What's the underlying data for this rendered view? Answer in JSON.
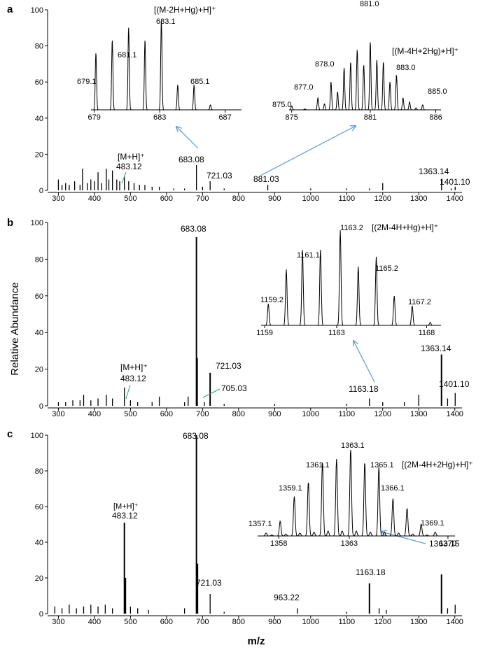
{
  "figure": {
    "ylabel": "Relative Abundance",
    "xlabel": "m/z",
    "arrow_color": "#5b9bd5",
    "green_color": "#2e9d7a"
  },
  "chart_data": [
    {
      "panel": "a",
      "type": "bar",
      "xlim": [
        270,
        1420
      ],
      "ylim": [
        0,
        100
      ],
      "xticks": [
        300,
        400,
        500,
        600,
        700,
        800,
        900,
        1000,
        1100,
        1200,
        1300,
        1400
      ],
      "yticks": [
        0,
        20,
        40,
        60,
        80,
        100
      ],
      "peaks": [
        [
          300,
          6
        ],
        [
          310,
          3
        ],
        [
          320,
          4
        ],
        [
          330,
          3
        ],
        [
          345,
          5
        ],
        [
          360,
          3
        ],
        [
          367,
          12
        ],
        [
          380,
          4
        ],
        [
          390,
          6
        ],
        [
          400,
          5
        ],
        [
          410,
          10
        ],
        [
          420,
          4
        ],
        [
          433,
          12
        ],
        [
          440,
          6
        ],
        [
          450,
          11
        ],
        [
          462,
          6
        ],
        [
          470,
          5
        ],
        [
          483.12,
          8
        ],
        [
          495,
          5
        ],
        [
          510,
          4
        ],
        [
          525,
          3
        ],
        [
          540,
          3
        ],
        [
          560,
          2
        ],
        [
          580,
          2
        ],
        [
          620,
          1
        ],
        [
          650,
          1
        ],
        [
          683.08,
          14
        ],
        [
          700,
          2
        ],
        [
          721.03,
          5
        ],
        [
          760,
          1
        ],
        [
          881.03,
          3
        ],
        [
          1000,
          1
        ],
        [
          1100,
          1
        ],
        [
          1163,
          1
        ],
        [
          1200,
          4
        ],
        [
          1363.14,
          6
        ],
        [
          1390,
          1
        ],
        [
          1401.1,
          2
        ]
      ],
      "labels": [
        {
          "text": "[M+H]⁺",
          "x": 483.12,
          "color": "green"
        },
        {
          "text": "483.12",
          "x": 483.12
        },
        {
          "text": "683.08",
          "x": 683.08
        },
        {
          "text": "721.03",
          "x": 721.03
        },
        {
          "text": "881.03",
          "x": 881.03
        },
        {
          "text": "1363.14",
          "x": 1363.14
        },
        {
          "text": "1401.10",
          "x": 1401.1
        }
      ],
      "insets": [
        {
          "title": "[(M-2H+Hg)+H]⁺",
          "xlim": [
            678.8,
            688
          ],
          "xticks": [
            679,
            683,
            687
          ],
          "peaks": [
            [
              679.1,
              57
            ],
            [
              680.1,
              70
            ],
            [
              681.1,
              82
            ],
            [
              682.1,
              70
            ],
            [
              683.1,
              90
            ],
            [
              684.1,
              25
            ],
            [
              685.1,
              25
            ],
            [
              686.1,
              5
            ]
          ],
          "labels": [
            "679.1",
            "681.1",
            "683.1",
            "685.1"
          ]
        },
        {
          "title": "[(M-4H+2Hg)+H]⁺",
          "xlim": [
            874.8,
            886.4
          ],
          "xticks": [
            875,
            881,
            886
          ],
          "peaks": [
            [
              875,
              4
            ],
            [
              876,
              1
            ],
            [
              877,
              12
            ],
            [
              877.5,
              6
            ],
            [
              878,
              28
            ],
            [
              878.5,
              18
            ],
            [
              879,
              42
            ],
            [
              879.5,
              48
            ],
            [
              880,
              60
            ],
            [
              880.5,
              45
            ],
            [
              881,
              68
            ],
            [
              881.5,
              50
            ],
            [
              882,
              48
            ],
            [
              882.5,
              28
            ],
            [
              883,
              35
            ],
            [
              883.5,
              12
            ],
            [
              884,
              8
            ],
            [
              884.5,
              2
            ],
            [
              885,
              5
            ]
          ],
          "labels": [
            "875.0",
            "877.0",
            "878.0",
            "881.0",
            "883.0",
            "885.0"
          ]
        }
      ]
    },
    {
      "panel": "b",
      "type": "bar",
      "xlim": [
        270,
        1420
      ],
      "ylim": [
        0,
        100
      ],
      "xticks": [
        300,
        400,
        500,
        600,
        700,
        800,
        900,
        1000,
        1100,
        1200,
        1300,
        1400
      ],
      "yticks": [
        0,
        20,
        40,
        60,
        80,
        100
      ],
      "peaks": [
        [
          300,
          2
        ],
        [
          320,
          2
        ],
        [
          340,
          3
        ],
        [
          360,
          3
        ],
        [
          370,
          6
        ],
        [
          390,
          3
        ],
        [
          410,
          4
        ],
        [
          433,
          6
        ],
        [
          450,
          4
        ],
        [
          483.12,
          10
        ],
        [
          500,
          3
        ],
        [
          520,
          2
        ],
        [
          560,
          2
        ],
        [
          580,
          5
        ],
        [
          650,
          2
        ],
        [
          660,
          5
        ],
        [
          683.08,
          92
        ],
        [
          685,
          26
        ],
        [
          705.03,
          2
        ],
        [
          721.03,
          18
        ],
        [
          760,
          1
        ],
        [
          900,
          1
        ],
        [
          1100,
          1
        ],
        [
          1163.18,
          4
        ],
        [
          1200,
          2
        ],
        [
          1260,
          2
        ],
        [
          1300,
          6
        ],
        [
          1363.14,
          28
        ],
        [
          1380,
          4
        ],
        [
          1401.1,
          7
        ]
      ],
      "labels": [
        {
          "text": "683.08",
          "x": 683.08
        },
        {
          "text": "721.03",
          "x": 721.03
        },
        {
          "text": "705.03",
          "x": 705.03,
          "color": "green"
        },
        {
          "text": "[M+H]⁺",
          "x": 483.12
        },
        {
          "text": "483.12",
          "x": 483.12
        },
        {
          "text": "1163.18",
          "x": 1163.18
        },
        {
          "text": "1363.14",
          "x": 1363.14
        },
        {
          "text": "1401.10",
          "x": 1401.1
        }
      ],
      "insets": [
        {
          "title": "[(2M-4H+Hg)+H]⁺",
          "xlim": [
            1158.8,
            1168.8
          ],
          "xticks": [
            1159,
            1163,
            1168
          ],
          "peaks": [
            [
              1159.2,
              22
            ],
            [
              1160.2,
              57
            ],
            [
              1161.1,
              77
            ],
            [
              1162.1,
              77
            ],
            [
              1163.2,
              97
            ],
            [
              1164.2,
              60
            ],
            [
              1165.2,
              70
            ],
            [
              1166.2,
              30
            ],
            [
              1167.2,
              20
            ],
            [
              1168.2,
              3
            ]
          ],
          "labels": [
            "1159.2",
            "1161.1",
            "1163.2",
            "1165.2",
            "1167.2"
          ]
        }
      ]
    },
    {
      "panel": "c",
      "type": "bar",
      "xlim": [
        270,
        1420
      ],
      "ylim": [
        0,
        100
      ],
      "xticks": [
        300,
        400,
        500,
        600,
        700,
        800,
        900,
        1000,
        1100,
        1200,
        1300,
        1400
      ],
      "yticks": [
        0,
        20,
        40,
        60,
        80,
        100
      ],
      "peaks": [
        [
          290,
          4
        ],
        [
          310,
          3
        ],
        [
          330,
          5
        ],
        [
          350,
          3
        ],
        [
          370,
          4
        ],
        [
          390,
          5
        ],
        [
          410,
          4
        ],
        [
          430,
          5
        ],
        [
          450,
          3
        ],
        [
          483.12,
          51
        ],
        [
          486,
          20
        ],
        [
          500,
          4
        ],
        [
          520,
          3
        ],
        [
          550,
          2
        ],
        [
          650,
          3
        ],
        [
          683.08,
          100
        ],
        [
          686,
          28
        ],
        [
          721.03,
          11
        ],
        [
          760,
          1
        ],
        [
          963.22,
          3
        ],
        [
          1100,
          1
        ],
        [
          1163.18,
          17
        ],
        [
          1190,
          3
        ],
        [
          1210,
          2
        ],
        [
          1363.15,
          22
        ],
        [
          1380,
          3
        ],
        [
          1401,
          5
        ]
      ],
      "labels": [
        {
          "text": "[M+H]⁺",
          "x": 483.12
        },
        {
          "text": "483.12",
          "x": 483.12
        },
        {
          "text": "683.08",
          "x": 683.08
        },
        {
          "text": "721.03",
          "x": 721.03
        },
        {
          "text": "963.22",
          "x": 963.22
        },
        {
          "text": "1163.18",
          "x": 1163.18
        },
        {
          "text": "1363.15",
          "x": 1363.15
        }
      ],
      "insets": [
        {
          "title": "[(2M-4H+2Hg)+H]⁺",
          "xlim": [
            1356.5,
            1370.5
          ],
          "xticks": [
            1358,
            1363,
            1370
          ],
          "peaks": [
            [
              1357.1,
              3
            ],
            [
              1357.5,
              1
            ],
            [
              1358.1,
              15
            ],
            [
              1358.5,
              2
            ],
            [
              1359.1,
              40
            ],
            [
              1359.5,
              3
            ],
            [
              1360.1,
              55
            ],
            [
              1360.5,
              4
            ],
            [
              1361.1,
              75
            ],
            [
              1361.5,
              5
            ],
            [
              1362.1,
              78
            ],
            [
              1362.5,
              5
            ],
            [
              1363.1,
              88
            ],
            [
              1363.5,
              5
            ],
            [
              1364.1,
              75
            ],
            [
              1364.5,
              4
            ],
            [
              1365.1,
              70
            ],
            [
              1365.5,
              4
            ],
            [
              1366.1,
              38
            ],
            [
              1366.5,
              3
            ],
            [
              1367.1,
              28
            ],
            [
              1367.5,
              2
            ],
            [
              1368.1,
              12
            ],
            [
              1368.5,
              1
            ],
            [
              1369.1,
              4
            ]
          ],
          "labels": [
            "1357.1",
            "1359.1",
            "1361.1",
            "1363.1",
            "1365.1",
            "1366.1",
            "1369.1"
          ]
        }
      ]
    }
  ]
}
